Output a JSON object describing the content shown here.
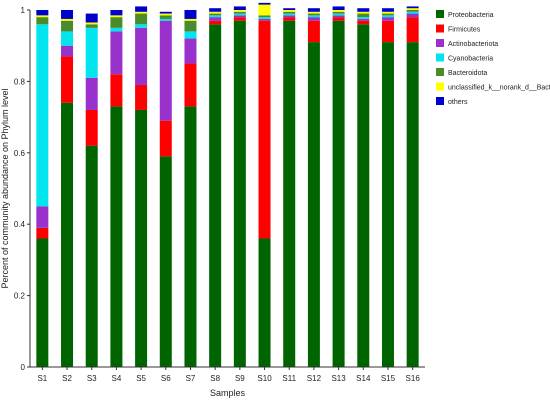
{
  "chart_data": {
    "type": "bar",
    "stacked": true,
    "xlabel": "Samples",
    "ylabel": "Percent of community abundance on Phylum level",
    "ylim": [
      0,
      1
    ],
    "yticks": [
      0,
      0.2,
      0.4,
      0.6,
      0.8,
      1
    ],
    "ytick_labels": [
      "0",
      "0.2",
      "0.4",
      "0.6",
      "0.8",
      "1"
    ],
    "categories": [
      "S1",
      "S2",
      "S3",
      "S4",
      "S5",
      "S6",
      "S7",
      "S8",
      "S9",
      "S10",
      "S11",
      "S12",
      "S13",
      "S14",
      "S15",
      "S16"
    ],
    "legend_position": "right",
    "series": [
      {
        "name": "Proteobacteria",
        "color": "#006400",
        "values": [
          0.36,
          0.74,
          0.62,
          0.73,
          0.72,
          0.59,
          0.73,
          0.96,
          0.97,
          0.36,
          0.97,
          0.91,
          0.97,
          0.96,
          0.91,
          0.91
        ]
      },
      {
        "name": "Firmicutes",
        "color": "#ff0000",
        "values": [
          0.03,
          0.13,
          0.1,
          0.09,
          0.07,
          0.1,
          0.12,
          0.01,
          0.01,
          0.61,
          0.01,
          0.06,
          0.01,
          0.01,
          0.06,
          0.07
        ]
      },
      {
        "name": "Actinobacteriota",
        "color": "#9932cc",
        "values": [
          0.06,
          0.03,
          0.09,
          0.12,
          0.16,
          0.28,
          0.07,
          0.01,
          0.005,
          0.005,
          0.005,
          0.01,
          0.005,
          0.005,
          0.01,
          0.01
        ]
      },
      {
        "name": "Cyanobacteria",
        "color": "#00e5ee",
        "values": [
          0.51,
          0.04,
          0.14,
          0.01,
          0.01,
          0.005,
          0.02,
          0.005,
          0.005,
          0.005,
          0.005,
          0.005,
          0.005,
          0.005,
          0.005,
          0.005
        ]
      },
      {
        "name": "Bacteroidota",
        "color": "#4b8b2b",
        "values": [
          0.02,
          0.03,
          0.01,
          0.03,
          0.03,
          0.01,
          0.03,
          0.005,
          0.005,
          0.005,
          0.005,
          0.005,
          0.005,
          0.01,
          0.005,
          0.005
        ]
      },
      {
        "name": "unclassified_k__norank_d__Bacteria",
        "color": "#ffff00",
        "values": [
          0.005,
          0.005,
          0.005,
          0.005,
          0.005,
          0.005,
          0.005,
          0.005,
          0.005,
          0.03,
          0.005,
          0.005,
          0.005,
          0.005,
          0.005,
          0.005
        ]
      },
      {
        "name": "others",
        "color": "#0000cd",
        "values": [
          0.015,
          0.025,
          0.025,
          0.015,
          0.015,
          0.005,
          0.025,
          0.01,
          0.01,
          0.005,
          0.005,
          0.01,
          0.01,
          0.01,
          0.01,
          0.005
        ]
      }
    ]
  }
}
